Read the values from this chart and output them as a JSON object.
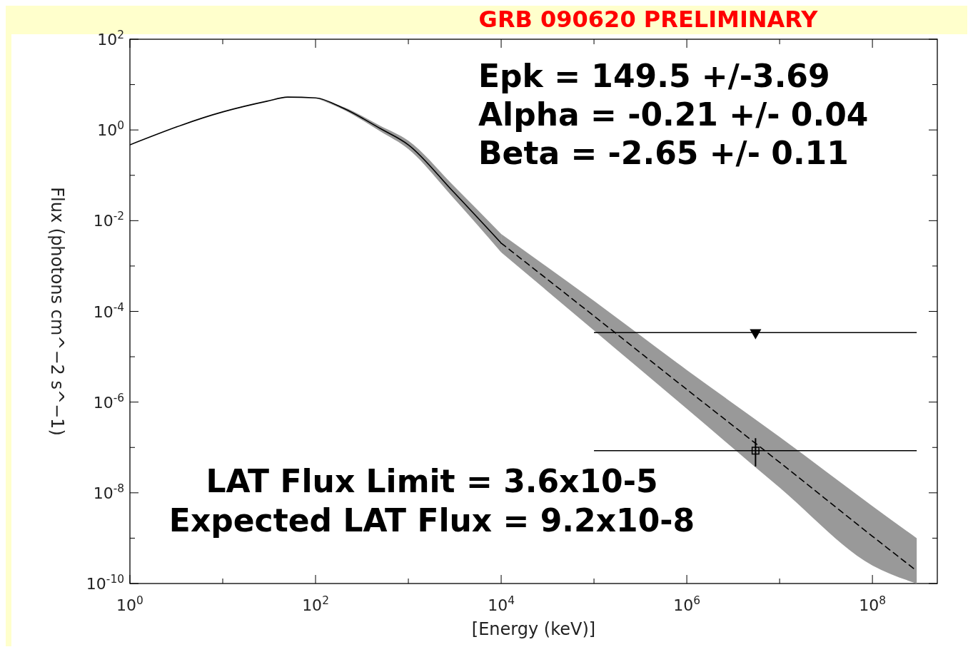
{
  "chart_data": {
    "type": "line",
    "title": "GRB 090620    PRELIMINARY",
    "xlabel": "[Energy (keV)]",
    "ylabel": "Flux (photons cm^−2 s^−1)",
    "log": "xy",
    "grid": false,
    "xlim": [
      1,
      500000000
    ],
    "ylim": [
      1e-10,
      100
    ],
    "xticks": [
      {
        "value": 1,
        "label": "10$^{0}$"
      },
      {
        "value": 10,
        "label": null
      },
      {
        "value": 100,
        "label": "10$^{2}$"
      },
      {
        "value": 1000,
        "label": null
      },
      {
        "value": 10000,
        "label": "10$^{4}$"
      },
      {
        "value": 100000,
        "label": null
      },
      {
        "value": 1000000,
        "label": "10$^{6}$"
      },
      {
        "value": 10000000,
        "label": null
      },
      {
        "value": 100000000,
        "label": "10$^{8}$"
      }
    ],
    "yticks": [
      {
        "value": 1e-10,
        "label": "10$^{-10}$"
      },
      {
        "value": 1e-09,
        "label": null
      },
      {
        "value": 1e-08,
        "label": "10$^{-8}$"
      },
      {
        "value": 1e-07,
        "label": null
      },
      {
        "value": 1e-06,
        "label": "10$^{-6}$"
      },
      {
        "value": 1e-05,
        "label": null
      },
      {
        "value": 0.0001,
        "label": "10$^{-4}$"
      },
      {
        "value": 0.001,
        "label": null
      },
      {
        "value": 0.01,
        "label": "10$^{-2}$"
      },
      {
        "value": 0.1,
        "label": null
      },
      {
        "value": 1,
        "label": "10$^{0}$"
      },
      {
        "value": 10,
        "label": null
      },
      {
        "value": 100,
        "label": "10$^{2}$"
      }
    ],
    "series": [
      {
        "color": "#000000",
        "line_style": "solid",
        "x": [
          1,
          10,
          30,
          50,
          100,
          200,
          500,
          1000,
          3000,
          10000
        ],
        "values": [
          0.47,
          2.5,
          4.3,
          5.3,
          5.1,
          3.0,
          1.07,
          0.47,
          0.045,
          0.0032
        ],
        "lower": [
          null,
          null,
          null,
          null,
          5.1,
          2.8,
          0.93,
          0.38,
          0.033,
          0.002
        ],
        "upper": [
          null,
          null,
          null,
          null,
          5.1,
          3.2,
          1.23,
          0.58,
          0.062,
          0.0051
        ]
      },
      {
        "color": "#000000",
        "line_style": "dashed",
        "x": [
          10000,
          100000,
          1000000,
          10000000,
          100000000,
          300000000
        ],
        "values": [
          0.0032,
          7.9e-05,
          1.9e-06,
          4.7e-08,
          1.1e-09,
          1.9e-10
        ],
        "lower": [
          0.002,
          3.8e-05,
          7.1e-07,
          1.3e-08,
          2.5e-10,
          1e-10
        ],
        "upper": [
          0.0051,
          0.00017,
          5.1e-06,
          1.7e-07,
          5.1e-09,
          1e-09
        ]
      },
      {
        "type": "scatter",
        "color": "#000000",
        "marker": "triangle",
        "x": [
          5500000
        ],
        "values": [
          3.4e-05
        ],
        "xerrors": [
          [
            100000,
            300000000
          ]
        ]
      },
      {
        "type": "scatter",
        "color": "#000000",
        "marker": "square",
        "x": [
          5500000
        ],
        "values": [
          8.5e-08
        ],
        "xerrors": [
          [
            100000,
            300000000
          ]
        ],
        "errors": [
          [
            3.8e-08,
            1.6e-07
          ]
        ]
      }
    ],
    "annotations": [
      "Epk = 149.5 +/-3.69",
      "Alpha = -0.21 +/- 0.04",
      "Beta = -2.65 +/- 0.11",
      "LAT Flux Limit = 3.6x10-5",
      "Expected LAT Flux = 9.2x10-8"
    ]
  }
}
